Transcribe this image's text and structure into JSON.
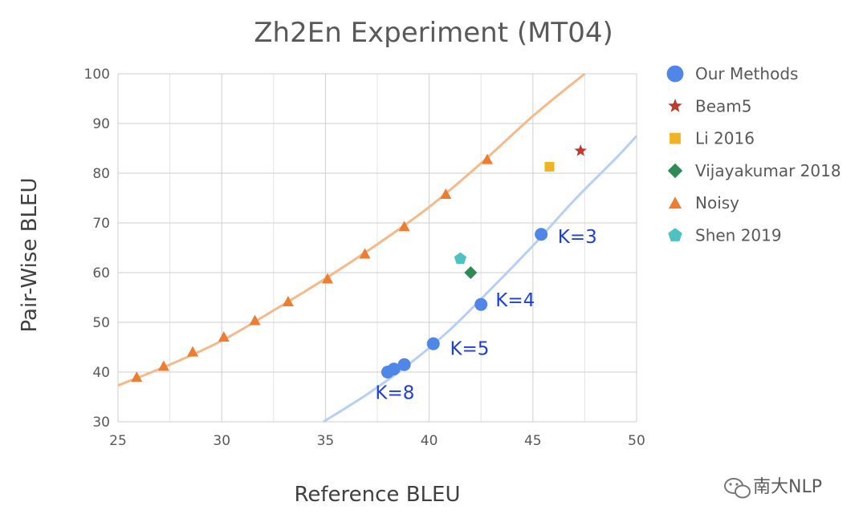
{
  "chart_data": {
    "type": "scatter",
    "title": "Zh2En Experiment (MT04)",
    "xlabel": "Reference BLEU",
    "ylabel": "Pair-Wise BLEU",
    "xlim": [
      25,
      50
    ],
    "ylim": [
      30,
      100
    ],
    "xticks": [
      25,
      30,
      35,
      40,
      45,
      50
    ],
    "yticks": [
      30,
      40,
      50,
      60,
      70,
      80,
      90,
      100
    ],
    "minor_x_step": 2.5,
    "grid": true,
    "legend_position": "right",
    "series": [
      {
        "name": "Our Methods",
        "marker": "circle",
        "color": "#4f86e8",
        "points": [
          [
            45.4,
            67.7
          ],
          [
            42.5,
            53.6
          ],
          [
            40.2,
            45.7
          ],
          [
            38.8,
            41.5
          ],
          [
            38.3,
            40.6
          ],
          [
            38.0,
            40.0
          ]
        ]
      },
      {
        "name": "Beam5",
        "marker": "star",
        "color": "#c0392b",
        "points": [
          [
            47.3,
            84.5
          ]
        ]
      },
      {
        "name": "Li 2016",
        "marker": "square",
        "color": "#f0b323",
        "points": [
          [
            45.8,
            81.3
          ]
        ]
      },
      {
        "name": "Vijayakumar 2018",
        "marker": "diamond",
        "color": "#2e8b57",
        "points": [
          [
            42.0,
            60.0
          ]
        ]
      },
      {
        "name": "Noisy",
        "marker": "triangle",
        "color": "#ed7d31",
        "points": [
          [
            25.9,
            39.0
          ],
          [
            27.2,
            41.2
          ],
          [
            28.6,
            44.1
          ],
          [
            30.1,
            47.1
          ],
          [
            31.6,
            50.4
          ],
          [
            33.2,
            54.2
          ],
          [
            35.1,
            58.8
          ],
          [
            36.9,
            63.8
          ],
          [
            38.8,
            69.3
          ],
          [
            40.8,
            75.8
          ],
          [
            42.8,
            82.8
          ]
        ]
      },
      {
        "name": "Shen 2019",
        "marker": "pentagon",
        "color": "#4ec2c2",
        "points": [
          [
            41.5,
            62.8
          ]
        ]
      }
    ],
    "trendlines": [
      {
        "name": "Noisy trend",
        "color": "#f5b98a",
        "points": [
          [
            25,
            37.3
          ],
          [
            27.5,
            41.5
          ],
          [
            30,
            46.3
          ],
          [
            32.5,
            52.4
          ],
          [
            35,
            58.8
          ],
          [
            37.5,
            65.7
          ],
          [
            40,
            73.2
          ],
          [
            42.5,
            82.0
          ],
          [
            45,
            91.5
          ],
          [
            47.5,
            100.0
          ]
        ]
      },
      {
        "name": "Our Methods trend",
        "color": "#b8cff5",
        "points": [
          [
            34.9,
            30.0
          ],
          [
            37,
            35.5
          ],
          [
            39,
            41.5
          ],
          [
            41,
            48.5
          ],
          [
            43,
            56.8
          ],
          [
            45,
            65.4
          ],
          [
            47,
            74.6
          ],
          [
            49,
            83.0
          ],
          [
            50,
            87.5
          ]
        ]
      }
    ],
    "annotations": [
      {
        "text": "K=3",
        "x": 46.2,
        "y": 66.0
      },
      {
        "text": "K=4",
        "x": 43.2,
        "y": 53.2
      },
      {
        "text": "K=5",
        "x": 41.0,
        "y": 43.5
      },
      {
        "text": "K=8",
        "x": 37.4,
        "y": 34.6
      }
    ]
  },
  "watermark": {
    "icon": "wechat-icon",
    "text": "南大NLP"
  }
}
